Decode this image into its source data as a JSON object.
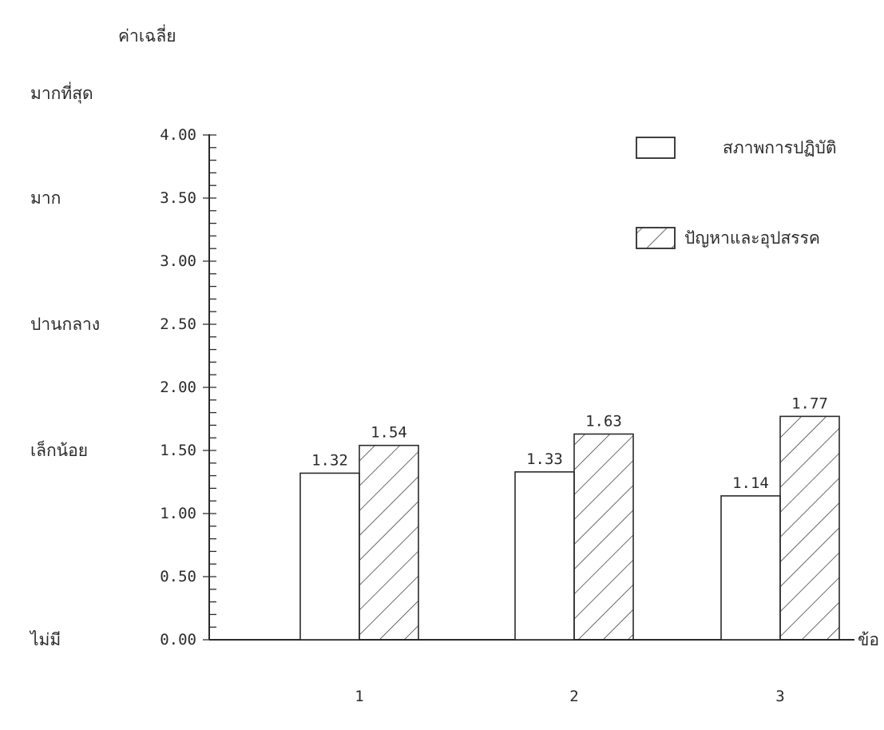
{
  "chart_data": {
    "type": "bar",
    "ylabel": "ค่าเฉลี่ย",
    "xlabel": "ข้อ",
    "categories": [
      "1",
      "2",
      "3"
    ],
    "series": [
      {
        "name": "สภาพการปฏิบัติ",
        "values": [
          1.32,
          1.33,
          1.14
        ],
        "value_labels": [
          "1.32",
          "1.33",
          "1.14"
        ],
        "pattern": "none"
      },
      {
        "name": "ปัญหาและอุปสรรค",
        "values": [
          1.54,
          1.63,
          1.77
        ],
        "value_labels": [
          "1.54",
          "1.63",
          "1.77"
        ],
        "pattern": "diagonal-hatch"
      }
    ],
    "ylim": [
      0,
      4
    ],
    "yticks": [
      0,
      0.5,
      1,
      1.5,
      2,
      2.5,
      3,
      3.5,
      4
    ],
    "ytick_labels": [
      "0.00",
      "0.50",
      "1.00",
      "1.50",
      "2.00",
      "2.50",
      "3.00",
      "3.50",
      "4.00"
    ],
    "level_labels": [
      {
        "label": "ไม่มี",
        "value": 0
      },
      {
        "label": "เล็กน้อย",
        "value": 1.5
      },
      {
        "label": "ปานกลาง",
        "value": 2.5
      },
      {
        "label": "มาก",
        "value": 3.5
      },
      {
        "label": "มากที่สุด",
        "value": 4.5
      }
    ],
    "legend_position": "top-right",
    "grid": false,
    "colors": {
      "ink": "#2b2b2b",
      "background": "#ffffff"
    }
  }
}
